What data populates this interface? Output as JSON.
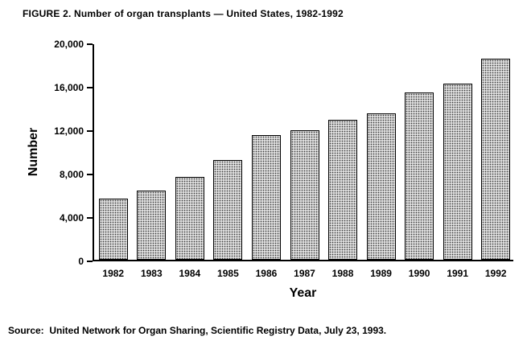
{
  "figure": {
    "title": "FIGURE 2. Number of organ transplants — United States, 1982-1992",
    "source": "Source:  United Network for Organ Sharing, Scientific Registry Data, July 23, 1993."
  },
  "chart_data": {
    "type": "bar",
    "title": "FIGURE 2. Number of organ transplants — United States, 1982-1992",
    "categories": [
      "1982",
      "1983",
      "1984",
      "1985",
      "1986",
      "1987",
      "1988",
      "1989",
      "1990",
      "1991",
      "1992"
    ],
    "values": [
      5600,
      6400,
      7600,
      9200,
      11500,
      11900,
      12900,
      13500,
      15400,
      16200,
      18500
    ],
    "xlabel": "Year",
    "ylabel": "Number",
    "ylim": [
      0,
      20000
    ],
    "yticks": [
      0,
      4000,
      8000,
      12000,
      16000,
      20000
    ],
    "ytick_labels": [
      "0",
      "4,000",
      "8,000",
      "12,000",
      "16,000",
      "20,000"
    ],
    "grid": false,
    "legend": "none",
    "bar_fill": "#dedede",
    "bar_pattern": "dot-stipple",
    "bar_border": "#000000",
    "background": "#ffffff"
  }
}
